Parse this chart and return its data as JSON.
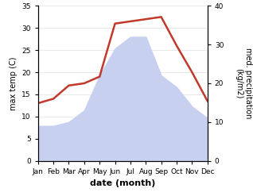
{
  "months": [
    "Jan",
    "Feb",
    "Mar",
    "Apr",
    "May",
    "Jun",
    "Jul",
    "Aug",
    "Sep",
    "Oct",
    "Nov",
    "Dec"
  ],
  "max_temp": [
    13.0,
    14.0,
    17.0,
    17.5,
    19.0,
    31.0,
    31.5,
    32.0,
    32.5,
    26.0,
    20.0,
    13.5
  ],
  "precipitation": [
    9.0,
    9.0,
    10.0,
    13.0,
    22.0,
    29.0,
    32.0,
    32.0,
    22.0,
    19.0,
    14.0,
    11.0
  ],
  "temp_color": "#c0392b",
  "precip_fill_color": "#c8d0f0",
  "ylabel_left": "max temp (C)",
  "ylabel_right": "med. precipitation\n(kg/m2)",
  "xlabel": "date (month)",
  "ylim_left": [
    0,
    35
  ],
  "ylim_right": [
    0,
    40
  ],
  "yticks_left": [
    0,
    5,
    10,
    15,
    20,
    25,
    30,
    35
  ],
  "yticks_right": [
    0,
    10,
    20,
    30,
    40
  ],
  "background_color": "#ffffff",
  "temp_linewidth": 1.8,
  "xlabel_fontsize": 8,
  "ylabel_fontsize": 7,
  "tick_fontsize": 6.5
}
